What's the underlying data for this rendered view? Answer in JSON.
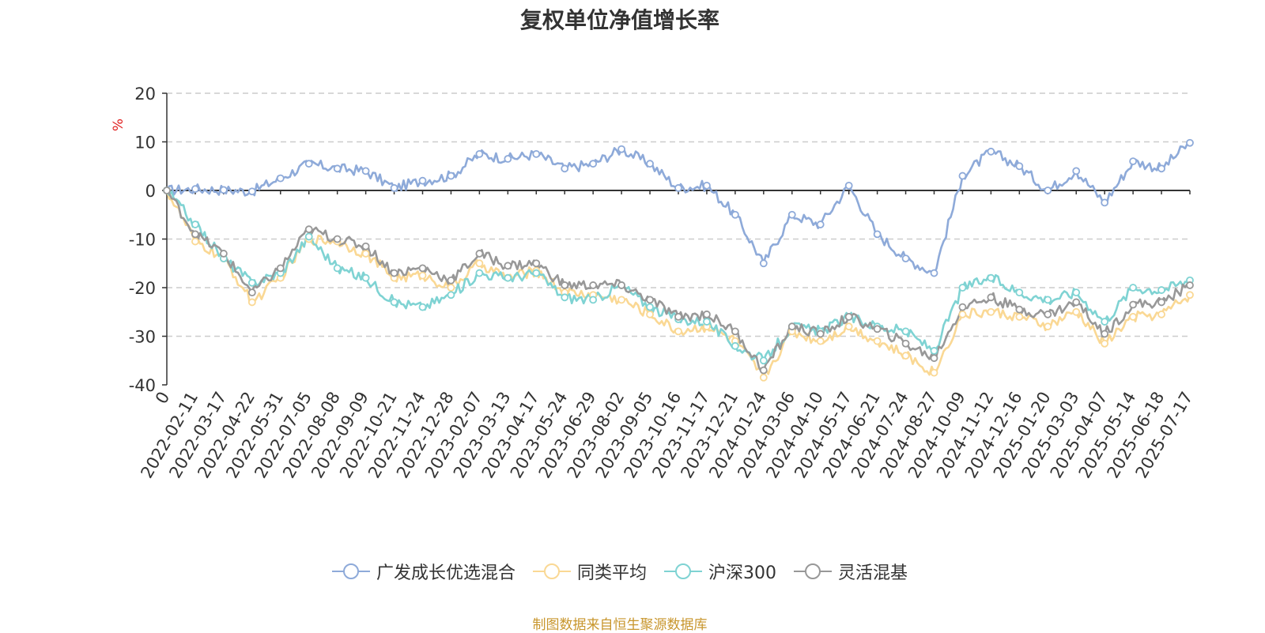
{
  "title": "复权单位净值增长率",
  "source_note": "制图数据来自恒生聚源数据库",
  "colors": {
    "fund": "#8eaad9",
    "peer_avg": "#fad894",
    "hs300": "#7fd3d3",
    "flex_mixed": "#989898",
    "axis": "#333333",
    "grid": "#cccccc",
    "unit": "#e02020",
    "source": "#c8962d"
  },
  "chart_data": {
    "type": "line",
    "ylabel": "%",
    "ylim": [
      -40,
      20
    ],
    "yticks": [
      -40,
      -30,
      -20,
      -10,
      0,
      10,
      20
    ],
    "grid": "horizontal dashed",
    "legend_position": "bottom-center",
    "x_ticks": [
      "0",
      "2022-02-11",
      "2022-03-17",
      "2022-04-22",
      "2022-05-31",
      "2022-07-05",
      "2022-08-08",
      "2022-09-09",
      "2022-10-21",
      "2022-11-24",
      "2022-12-28",
      "2023-02-07",
      "2023-03-13",
      "2023-04-17",
      "2023-05-24",
      "2023-06-29",
      "2023-08-02",
      "2023-09-05",
      "2023-10-16",
      "2023-11-17",
      "2023-12-21",
      "2024-01-24",
      "2024-03-06",
      "2024-04-10",
      "2024-05-17",
      "2024-06-21",
      "2024-07-24",
      "2024-08-27",
      "2024-10-09",
      "2024-11-12",
      "2024-12-16",
      "2025-01-20",
      "2025-03-03",
      "2025-04-07",
      "2025-05-14",
      "2025-06-18",
      "2025-07-17"
    ],
    "series": [
      {
        "name": "广发成长优选混合",
        "color_key": "fund",
        "values": [
          0,
          0.3,
          0.1,
          -0.2,
          2.5,
          5.5,
          4.5,
          4,
          0.5,
          2,
          3,
          7.5,
          6.5,
          7.5,
          4.5,
          5.5,
          8.5,
          5.5,
          0.5,
          1,
          -5,
          -15,
          -5,
          -7,
          1,
          -9,
          -14,
          -17,
          3,
          8,
          5,
          0,
          4,
          -2.5,
          6,
          4.5,
          9.8
        ]
      },
      {
        "name": "同类平均",
        "color_key": "peer_avg",
        "values": [
          0,
          -10.5,
          -14,
          -23,
          -18,
          -10,
          -10.5,
          -13,
          -18,
          -17.5,
          -20,
          -15,
          -18,
          -16.5,
          -21,
          -21.5,
          -22.5,
          -25.5,
          -29,
          -28,
          -31,
          -38.5,
          -29,
          -31,
          -28,
          -31,
          -34,
          -37.5,
          -25.5,
          -25,
          -26,
          -28,
          -25,
          -31.5,
          -26,
          -25.5,
          -21.5
        ]
      },
      {
        "name": "沪深300",
        "color_key": "hs300",
        "values": [
          0,
          -7,
          -14,
          -19,
          -17,
          -9.5,
          -16,
          -18,
          -23,
          -24,
          -21.5,
          -17,
          -18,
          -17,
          -22,
          -22.5,
          -19.5,
          -24,
          -26.5,
          -27,
          -32,
          -35,
          -28,
          -29,
          -26,
          -28,
          -29,
          -33,
          -20,
          -18,
          -21,
          -22.5,
          -21,
          -27,
          -20,
          -20.5,
          -18.5
        ]
      },
      {
        "name": "灵活混基",
        "color_key": "flex_mixed",
        "values": [
          0,
          -9,
          -13,
          -21,
          -16,
          -8,
          -10,
          -11.5,
          -17,
          -16,
          -18.5,
          -13,
          -15.5,
          -15,
          -19.5,
          -19.5,
          -19.5,
          -22.5,
          -26,
          -25.5,
          -29,
          -37,
          -28,
          -29.5,
          -26,
          -28.5,
          -31.5,
          -34.5,
          -24,
          -22,
          -24.5,
          -25.5,
          -23,
          -29.5,
          -23.5,
          -23,
          -19.5
        ]
      }
    ]
  }
}
